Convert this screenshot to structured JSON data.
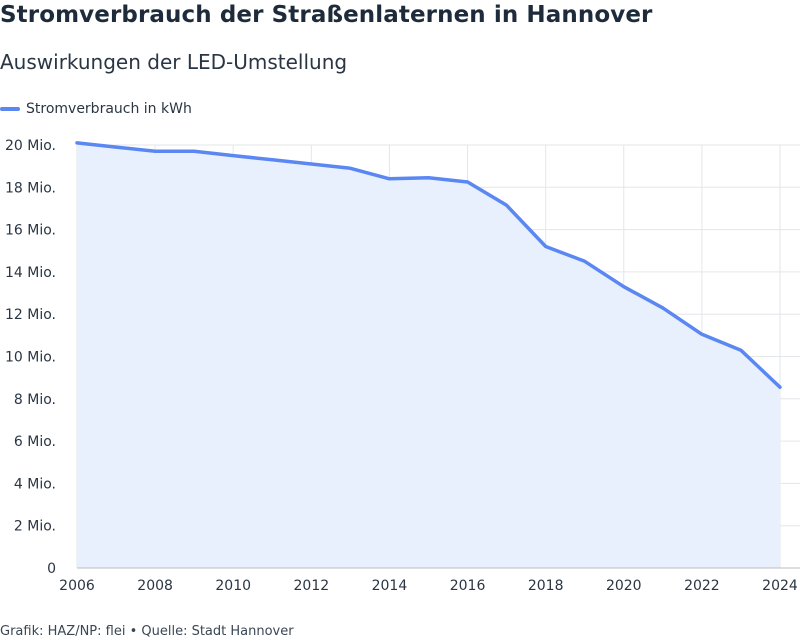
{
  "chart_data": {
    "type": "area",
    "title": "Stromverbrauch der Straßenlaternen in Hannover",
    "subtitle": "Auswirkungen der LED-Umstellung",
    "series": [
      {
        "name": "Stromverbrauch in kWh",
        "x": [
          2006,
          2007,
          2008,
          2009,
          2010,
          2011,
          2012,
          2013,
          2014,
          2015,
          2016,
          2017,
          2018,
          2019,
          2020,
          2021,
          2022,
          2023,
          2024
        ],
        "values": [
          20100000,
          19900000,
          19700000,
          19700000,
          19500000,
          19300000,
          19100000,
          18900000,
          18400000,
          18450000,
          18250000,
          17150000,
          15200000,
          14500000,
          13300000,
          12300000,
          11050000,
          10300000,
          8550000
        ]
      }
    ],
    "x_ticks": [
      "2006",
      "2008",
      "2010",
      "2012",
      "2014",
      "2016",
      "2018",
      "2020",
      "2022",
      "2024"
    ],
    "y_ticks": [
      {
        "value": 0,
        "label": "0"
      },
      {
        "value": 2000000,
        "label": "2 Mio."
      },
      {
        "value": 4000000,
        "label": "4 Mio."
      },
      {
        "value": 6000000,
        "label": "6 Mio."
      },
      {
        "value": 8000000,
        "label": "8 Mio."
      },
      {
        "value": 10000000,
        "label": "10 Mio."
      },
      {
        "value": 12000000,
        "label": "12 Mio."
      },
      {
        "value": 14000000,
        "label": "14 Mio."
      },
      {
        "value": 16000000,
        "label": "16 Mio."
      },
      {
        "value": 18000000,
        "label": "18 Mio."
      },
      {
        "value": 20000000,
        "label": "20 Mio."
      }
    ],
    "xlim": [
      2006,
      2024
    ],
    "ylim": [
      0,
      20000000
    ],
    "grid": true,
    "legend_position": "top-left",
    "colors": {
      "line": "#5a87f2",
      "fill": "#e8f0fe",
      "grid": "#e3e6ea",
      "axis": "#2a3644"
    }
  },
  "footer": "Grafik: HAZ/NP: flei • Quelle: Stadt Hannover"
}
